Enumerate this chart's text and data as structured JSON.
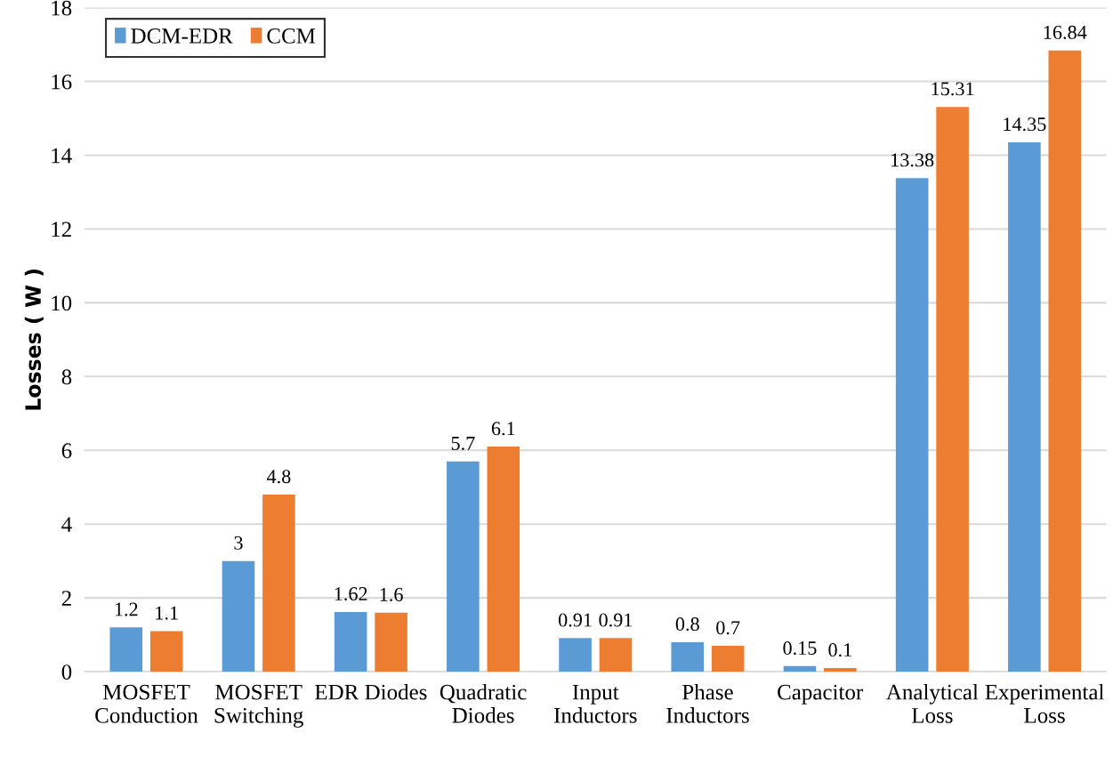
{
  "chart_data": {
    "type": "bar",
    "ylabel": "Losses ( W )",
    "categories": [
      "MOSFET\nConduction",
      "MOSFET\nSwitching",
      "EDR Diodes",
      "Quadratic\nDiodes",
      "Input\nInductors",
      "Phase\nInductors",
      "Capacitor",
      "Analytical\nLoss",
      "Experimental\nLoss"
    ],
    "series": [
      {
        "name": "DCM-EDR",
        "color": "#5b9bd5",
        "values": [
          1.2,
          3,
          1.62,
          5.7,
          0.91,
          0.8,
          0.15,
          13.38,
          14.35
        ]
      },
      {
        "name": "CCM",
        "color": "#ed7d31",
        "values": [
          1.1,
          4.8,
          1.6,
          6.1,
          0.91,
          0.7,
          0.1,
          15.31,
          16.84
        ]
      }
    ],
    "ylim": [
      0,
      18
    ],
    "yticks": [
      0,
      2,
      4,
      6,
      8,
      10,
      12,
      14,
      16,
      18
    ],
    "grid": "y",
    "legend": "top left",
    "data_labels": true
  }
}
